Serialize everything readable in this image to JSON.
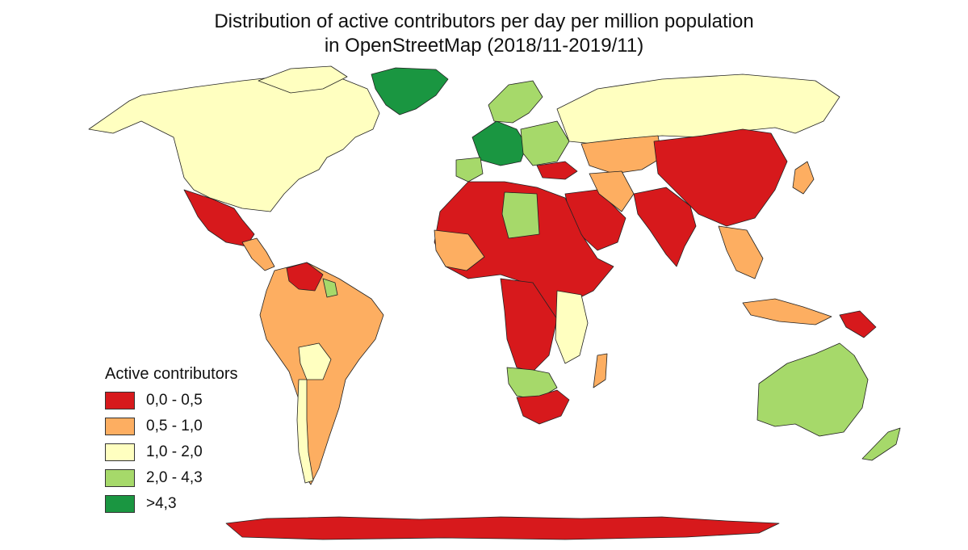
{
  "title": {
    "line1": "Distribution of active contributors per day per million population",
    "line2": "in OpenStreetMap (2018/11-2019/11)"
  },
  "legend": {
    "title": "Active contributors",
    "items": [
      {
        "label": "0,0 - 0,5",
        "color": "#d7191c"
      },
      {
        "label": "0,5 - 1,0",
        "color": "#fdae61"
      },
      {
        "label": "1,0 - 2,0",
        "color": "#ffffc0"
      },
      {
        "label": "2,0 - 4,3",
        "color": "#a6d96a"
      },
      {
        "label": ">4,3",
        "color": "#1a9641"
      }
    ]
  }
}
